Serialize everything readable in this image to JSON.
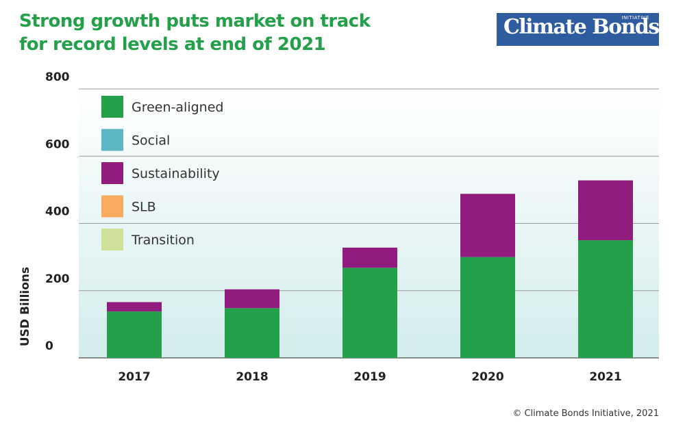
{
  "title": {
    "line1": "Strong growth puts market on track",
    "line2": "for record levels at end of 2021"
  },
  "logo": {
    "text": "Climate Bonds",
    "small": "INITIATIVE"
  },
  "copyright": "© Climate Bonds Initiative, 2021",
  "chart_data": {
    "type": "bar",
    "stacked": true,
    "title": "Strong growth puts market on track for record levels at end of 2021",
    "xlabel": "",
    "ylabel": "USD Billions",
    "ylim": [
      0,
      800
    ],
    "yticks": [
      0,
      200,
      400,
      600,
      800
    ],
    "grid": true,
    "legend_placement": "top-left",
    "categories": [
      "2017",
      "2018",
      "2019",
      "2020",
      "2021"
    ],
    "series": [
      {
        "name": "Green-aligned",
        "color": "#24a04a",
        "values": [
          138,
          148,
          268,
          300,
          350
        ]
      },
      {
        "name": "Social",
        "color": "#5db6c3",
        "values": [
          0,
          0,
          0,
          0,
          0
        ]
      },
      {
        "name": "Sustainability",
        "color": "#921c7d",
        "values": [
          28,
          56,
          60,
          188,
          178
        ]
      },
      {
        "name": "SLB",
        "color": "#f8ab5f",
        "values": [
          0,
          0,
          0,
          0,
          0
        ]
      },
      {
        "name": "Transition",
        "color": "#cfe19b",
        "values": [
          0,
          0,
          0,
          0,
          0
        ]
      }
    ],
    "stack_order": [
      "Green-aligned",
      "Social",
      "Sustainability",
      "SLB",
      "Transition"
    ]
  }
}
